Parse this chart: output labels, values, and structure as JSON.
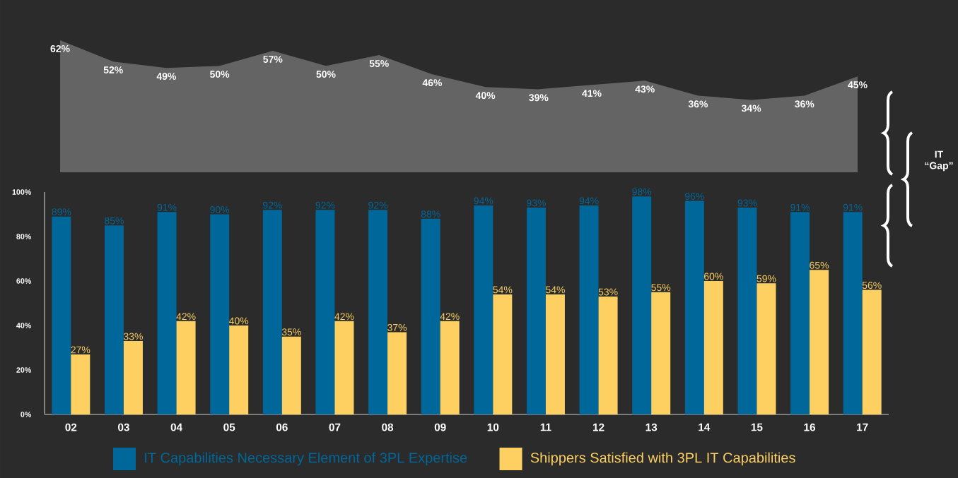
{
  "chart_data": [
    {
      "type": "area",
      "categories": [
        null,
        null,
        null,
        null,
        null,
        null,
        null,
        null,
        null,
        null,
        null,
        null,
        null,
        null,
        null,
        null
      ],
      "color": "#646464",
      "tick_labels": false,
      "values": [
        62,
        52,
        49,
        50,
        57,
        50,
        55,
        46,
        40,
        39,
        41,
        43,
        36,
        34,
        36,
        45
      ],
      "value_labels": [
        "62%",
        "52%",
        "49%",
        "50%",
        "57%",
        "50%",
        "55%",
        "46%",
        "40%",
        "39%",
        "41%",
        "43%",
        "36%",
        "34%",
        "36%",
        "45%"
      ],
      "annotations": [
        "IT “Gap”"
      ]
    },
    {
      "type": "bar",
      "categories": [
        "02",
        "03",
        "04",
        "05",
        "06",
        "07",
        "08",
        "09",
        "10",
        "11",
        "12",
        "13",
        "14",
        "15",
        "16",
        "17"
      ],
      "ylim": [
        0,
        100
      ],
      "yticks": [
        {
          "value": 0,
          "label": "0%"
        },
        {
          "value": 20,
          "label": "20%"
        },
        {
          "value": 40,
          "label": "40%"
        },
        {
          "value": 60,
          "label": "60%"
        },
        {
          "value": 80,
          "label": "80%"
        },
        {
          "value": 100,
          "label": "100%"
        }
      ],
      "legend": "bottom",
      "series": [
        {
          "name": "IT Capabilities Necessary Element of 3PL Expertise",
          "color": "#00679a",
          "values": [
            89,
            85,
            91,
            90,
            92,
            92,
            92,
            88,
            94,
            93,
            94,
            98,
            96,
            93,
            91,
            91
          ],
          "value_labels": [
            "89%",
            "85%",
            "91%",
            "90%",
            "92%",
            "92%",
            "92%",
            "88%",
            "94%",
            "93%",
            "94%",
            "98%",
            "96%",
            "93%",
            "91%",
            "91%"
          ]
        },
        {
          "name": "Shippers Satisfied with 3PL IT Capabilities",
          "color": "#fdd061",
          "values": [
            27,
            33,
            42,
            40,
            35,
            42,
            37,
            42,
            54,
            54,
            53,
            55,
            60,
            59,
            65,
            56
          ],
          "value_labels": [
            "27%",
            "33%",
            "42%",
            "40%",
            "35%",
            "42%",
            "37%",
            "42%",
            "54%",
            "54%",
            "53%",
            "55%",
            "60%",
            "59%",
            "65%",
            "56%"
          ]
        }
      ]
    }
  ]
}
